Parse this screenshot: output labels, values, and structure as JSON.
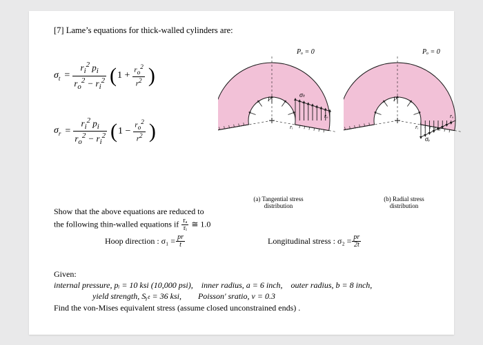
{
  "title": "[7] Lame’s equations for thick-walled cylinders are:",
  "eq": {
    "sigma_t_lhs": "σ",
    "sigma_t_sub": "t",
    "equals": " = ",
    "frac1_num_html": "r<sub>i</sub><sup>2</sup> p<sub>i</sub>",
    "frac1_den_html": "r<sub>o</sub><sup>2</sup> − r<sub>i</sub><sup>2</sup>",
    "paren_open": "(",
    "paren_close": ")",
    "one_plus": "1 + ",
    "one_minus": "1 − ",
    "frac2_num_html": "r<sub>o</sub><sup>2</sup>",
    "frac2_den_html": "r<sup>2</sup>",
    "sigma_r_lhs": "σ",
    "sigma_r_sub": "r"
  },
  "fig": {
    "outer_label": "Pₒ = 0",
    "sigma_t": "σₜ",
    "sigma_r": "σᵣ",
    "pi_label": "Pᵢ",
    "ro_label": "rₒ",
    "ri_label": "rᵢ",
    "capA": "(a) Tangential stress\ndistribution",
    "capB": "(b) Radial stress\ndistribution",
    "fill": "#f2c1d7",
    "stroke": "#1a1a1a",
    "hatch": "#222222",
    "inner_radius": 34,
    "outer_radius": 84
  },
  "reduce": {
    "l1": "Show that the above equations are reduced to",
    "l2_a": "the following thin-walled equations if ",
    "l2_frac_num": "rₐ",
    "l2_frac_den": "rᵢ",
    "l2_b": " ≅ 1.0"
  },
  "thin": {
    "hoop_label": "Hoop direction : σ₁ = ",
    "hoop_num": "pr",
    "hoop_den": "t",
    "long_label": "Longitudinal stress : σ₂ = ",
    "long_num": "pr",
    "long_den": "2t"
  },
  "given": {
    "title": "Given:",
    "r1": "internal pressure, pᵢ = 10 ksi (10,000 psi), inner radius, a = 6 inch, outer radius, b = 8 inch,",
    "r2": "yield strength, Sᵧₜ = 36 ksi,  Poisson' sratio, ν = 0.3",
    "r3": "Find the von-Mises equivalent stress (assume closed unconstrained ends) ."
  }
}
